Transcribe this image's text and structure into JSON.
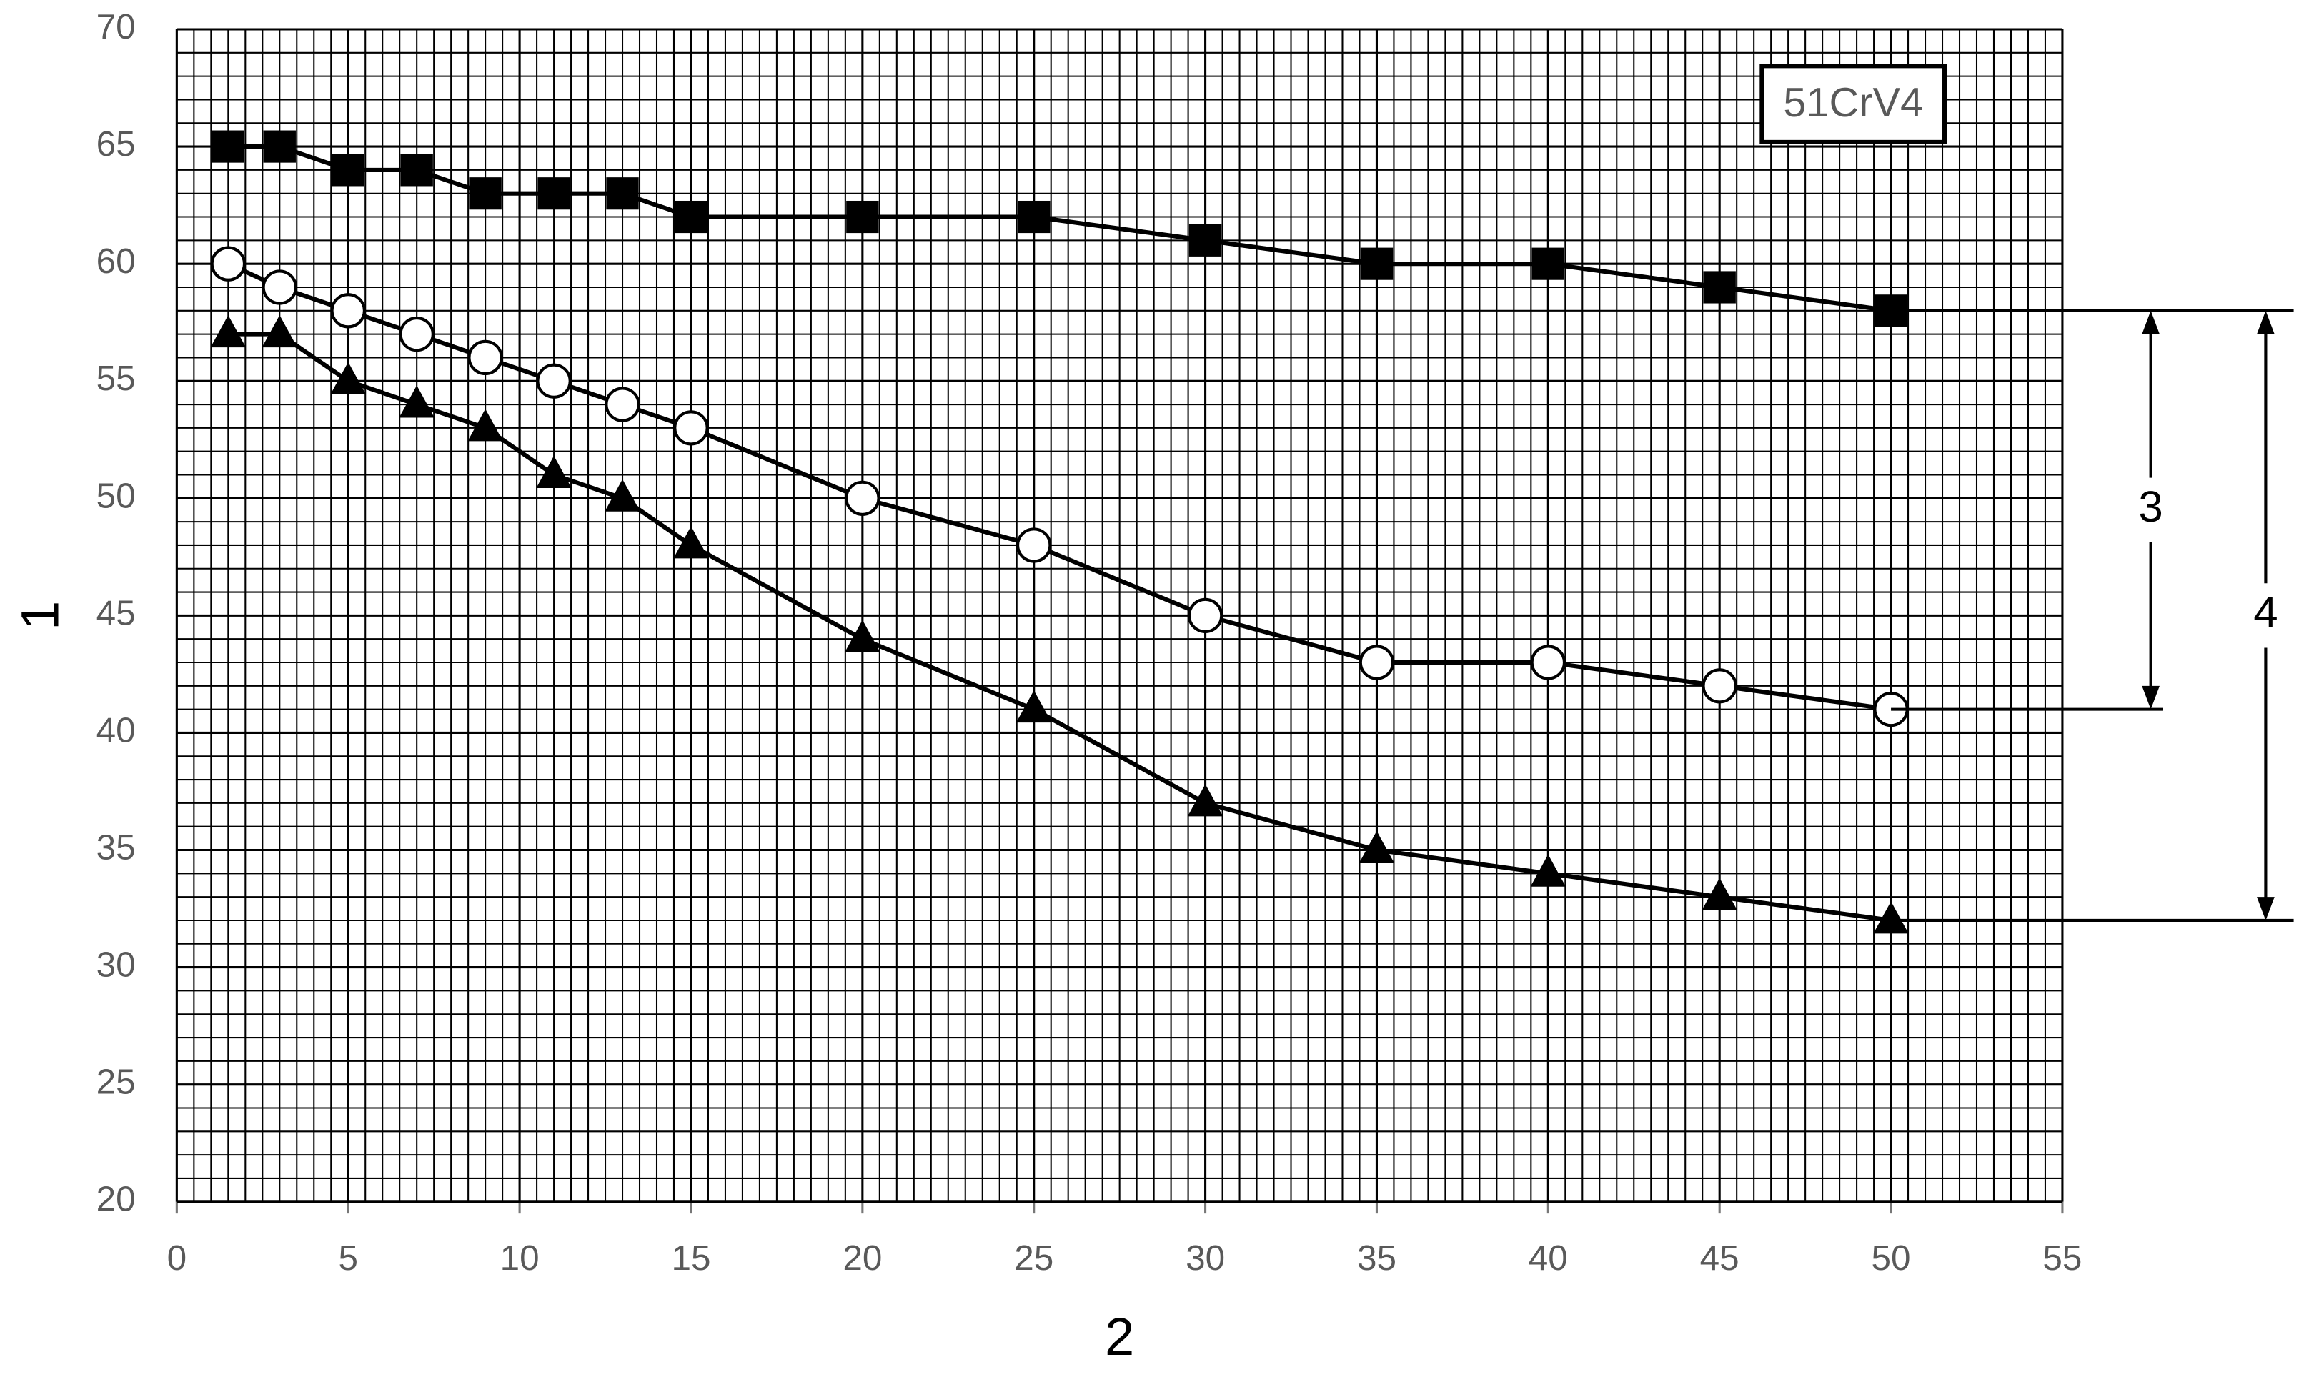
{
  "chart_data": {
    "type": "line",
    "x_label": "2",
    "y_label": "1",
    "box_label": "51CrV4",
    "annotations": [
      "3",
      "4"
    ],
    "x": [
      1.5,
      3,
      5,
      7,
      9,
      11,
      13,
      15,
      20,
      25,
      30,
      35,
      40,
      45,
      50
    ],
    "series": [
      {
        "marker": "square",
        "color": "#000000",
        "values": [
          65,
          65,
          64,
          64,
          63,
          63,
          63,
          62,
          62,
          62,
          61,
          60,
          60,
          59,
          58
        ]
      },
      {
        "marker": "circle",
        "color": "#000000",
        "values": [
          60,
          59,
          58,
          57,
          56,
          55,
          54,
          53,
          50,
          48,
          45,
          43,
          43,
          42,
          41
        ]
      },
      {
        "marker": "triangle",
        "color": "#000000",
        "values": [
          57,
          57,
          55,
          54,
          53,
          51,
          50,
          48,
          44,
          41,
          37,
          35,
          34,
          33,
          32
        ]
      }
    ],
    "xlim": [
      0,
      55
    ],
    "xticks": [
      0,
      5,
      10,
      15,
      20,
      25,
      30,
      35,
      40,
      45,
      50,
      55
    ],
    "ylim": [
      20,
      70
    ],
    "yticks": [
      20,
      25,
      30,
      35,
      40,
      45,
      50,
      55,
      60,
      65,
      70
    ],
    "grid": true
  }
}
